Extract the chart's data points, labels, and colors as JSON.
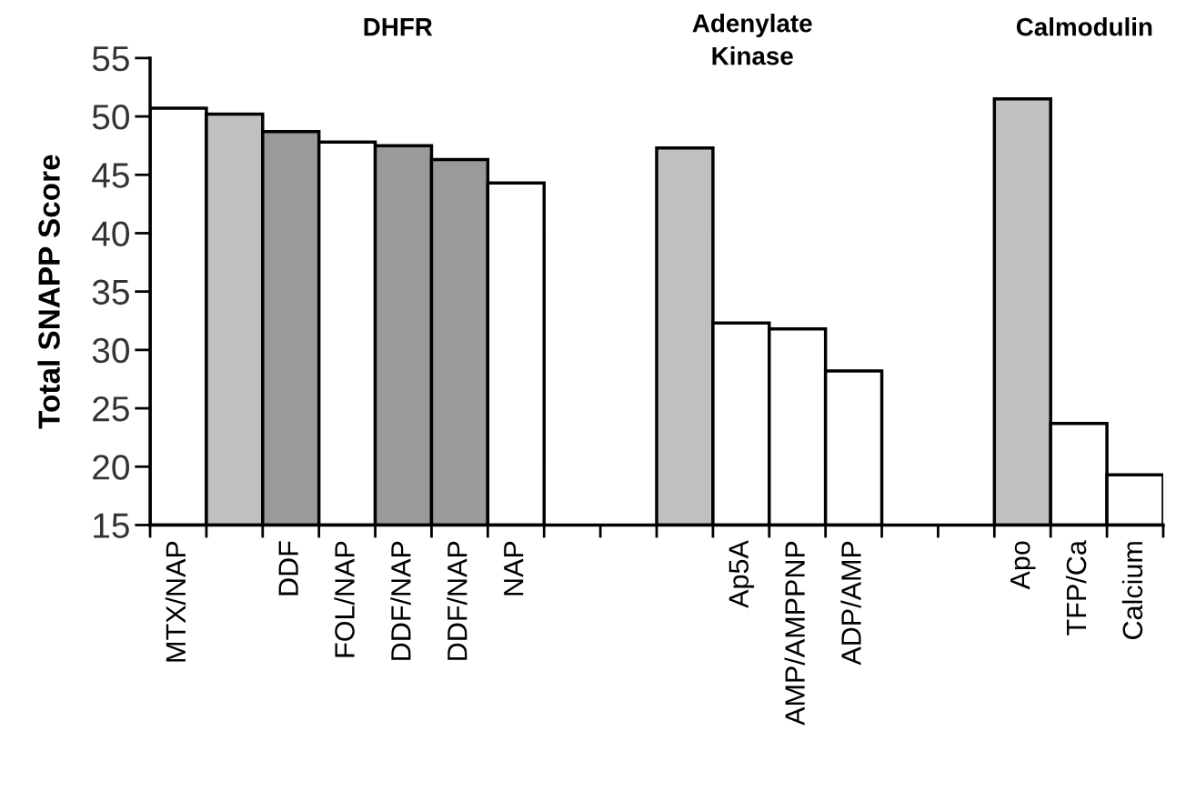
{
  "chart_data": {
    "type": "bar",
    "ylabel": "Total SNAPP Score",
    "annotations": [
      "DHFR",
      "Adenylate\nKinase",
      "Calmodulin"
    ],
    "categories": [
      "MTX/NAP",
      null,
      "DDF",
      "FOL/NAP",
      "DDF/NAP",
      "DDF/NAP",
      "NAP",
      null,
      null,
      null,
      "Ap5A",
      "AMP/AMPPNP",
      "ADP/AMP",
      null,
      null,
      "Apo",
      "TFP/Ca",
      "Calcium"
    ],
    "values": [
      50.7,
      50.2,
      48.7,
      47.8,
      47.5,
      46.3,
      44.3,
      null,
      null,
      47.3,
      32.3,
      31.8,
      28.2,
      null,
      null,
      51.5,
      23.7,
      19.3
    ],
    "colors": [
      "#ffffff",
      "#c0c0c0",
      "#9a9a9a",
      "#ffffff",
      "#9a9a9a",
      "#9a9a9a",
      "#ffffff",
      null,
      null,
      "#c0c0c0",
      "#ffffff",
      "#ffffff",
      "#ffffff",
      null,
      null,
      "#c0c0c0",
      "#ffffff",
      "#ffffff"
    ],
    "ylim": [
      15,
      55
    ],
    "yticks": [
      15,
      20,
      25,
      30,
      35,
      40,
      45,
      50,
      55
    ],
    "grid": false,
    "legend": false
  }
}
